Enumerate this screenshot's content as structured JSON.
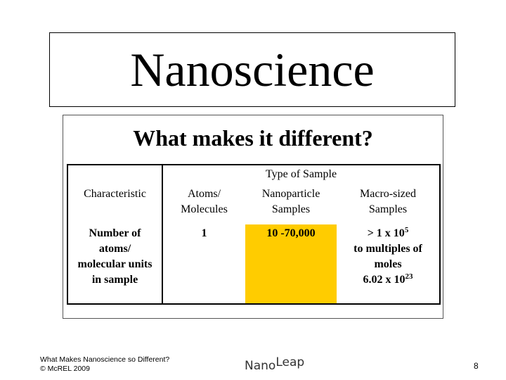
{
  "slide": {
    "title": "Nanoscience",
    "subtitle": "What makes it different?"
  },
  "table": {
    "group_header": "Type of Sample",
    "headers": {
      "characteristic": "Characteristic",
      "atoms_line1": "Atoms/",
      "atoms_line2": "Molecules",
      "nano_line1": "Nanoparticle",
      "nano_line2": "Samples",
      "macro_line1": "Macro-sized",
      "macro_line2": "Samples"
    },
    "row": {
      "label_lines": [
        "Number of",
        "atoms/",
        "molecular units",
        "in sample"
      ],
      "atoms_value": "1",
      "nano_value": "10 -70,000",
      "macro_line1_base": "> 1 x 10",
      "macro_line1_exp": "5",
      "macro_line2": "to multiples of",
      "macro_line3": "moles",
      "macro_line4_base": "6.02 x 10",
      "macro_line4_exp": "23"
    },
    "highlight_color": "#ffcc00"
  },
  "footer": {
    "line1": "What Makes Nanoscience so Different?",
    "line2": "© McREL 2009",
    "logo_nano": "Nano",
    "logo_leap": "Leap",
    "page_number": "8"
  }
}
